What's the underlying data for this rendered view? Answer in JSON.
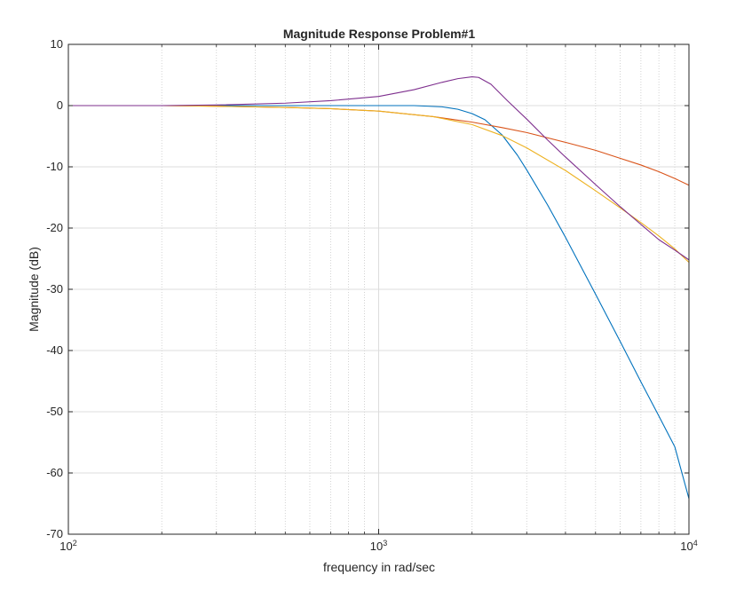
{
  "chart_data": {
    "type": "line",
    "title": "Magnitude Response Problem#1",
    "xlabel": "frequency in rad/sec",
    "ylabel": "Magnitude (dB)",
    "xscale": "log",
    "xlim": [
      100,
      10000
    ],
    "ylim": [
      -70,
      10
    ],
    "grid": true,
    "legend": "none",
    "x_ticks": [
      {
        "value": 100,
        "base": "10",
        "exp": "2"
      },
      {
        "value": 1000,
        "base": "10",
        "exp": "3"
      },
      {
        "value": 10000,
        "base": "10",
        "exp": "4"
      }
    ],
    "y_ticks": [
      {
        "value": 10,
        "label": "10"
      },
      {
        "value": 0,
        "label": "0"
      },
      {
        "value": -10,
        "label": "-10"
      },
      {
        "value": -20,
        "label": "-20"
      },
      {
        "value": -30,
        "label": "-30"
      },
      {
        "value": -40,
        "label": "-40"
      },
      {
        "value": -50,
        "label": "-50"
      },
      {
        "value": -60,
        "label": "-60"
      },
      {
        "value": -70,
        "label": "-70"
      }
    ],
    "series": [
      {
        "color": "#0072BD",
        "x": [
          100,
          200,
          300,
          500,
          700,
          1000,
          1300,
          1600,
          1800,
          2000,
          2200,
          2500,
          2800,
          3000,
          3500,
          4000,
          5000,
          6000,
          7000,
          8000,
          9000,
          10000
        ],
        "y": [
          0,
          0,
          0,
          0,
          0,
          0,
          0,
          -0.2,
          -0.6,
          -1.3,
          -2.3,
          -4.8,
          -8.1,
          -10.5,
          -16.2,
          -21.5,
          -30.8,
          -38.5,
          -45.1,
          -50.7,
          -55.7,
          -64.2
        ]
      },
      {
        "color": "#D95319",
        "x": [
          100,
          200,
          300,
          500,
          700,
          1000,
          1500,
          2000,
          2500,
          3000,
          4000,
          5000,
          6000,
          7000,
          8000,
          9000,
          10000
        ],
        "y": [
          0,
          0,
          -0.1,
          -0.3,
          -0.5,
          -0.9,
          -1.8,
          -2.7,
          -3.6,
          -4.4,
          -6.0,
          -7.3,
          -8.6,
          -9.7,
          -10.8,
          -11.9,
          -13.0
        ]
      },
      {
        "color": "#EDB120",
        "x": [
          100,
          200,
          300,
          500,
          700,
          1000,
          1500,
          2000,
          2500,
          3000,
          4000,
          5000,
          6000,
          7000,
          8000,
          9000,
          10000
        ],
        "y": [
          0,
          0,
          -0.1,
          -0.3,
          -0.5,
          -0.9,
          -1.8,
          -3.1,
          -4.9,
          -6.9,
          -10.6,
          -13.9,
          -16.7,
          -19.1,
          -21.3,
          -23.4,
          -25.6
        ]
      },
      {
        "color": "#7E2F8E",
        "x": [
          100,
          200,
          300,
          500,
          700,
          1000,
          1300,
          1600,
          1800,
          2000,
          2100,
          2300,
          2600,
          3000,
          3500,
          4000,
          5000,
          6000,
          7000,
          8000,
          9000,
          10000
        ],
        "y": [
          0,
          0,
          0.1,
          0.4,
          0.8,
          1.5,
          2.6,
          3.8,
          4.4,
          4.7,
          4.6,
          3.5,
          0.8,
          -2.2,
          -5.6,
          -8.4,
          -12.9,
          -16.5,
          -19.4,
          -21.9,
          -23.6,
          -25.2
        ]
      }
    ]
  }
}
